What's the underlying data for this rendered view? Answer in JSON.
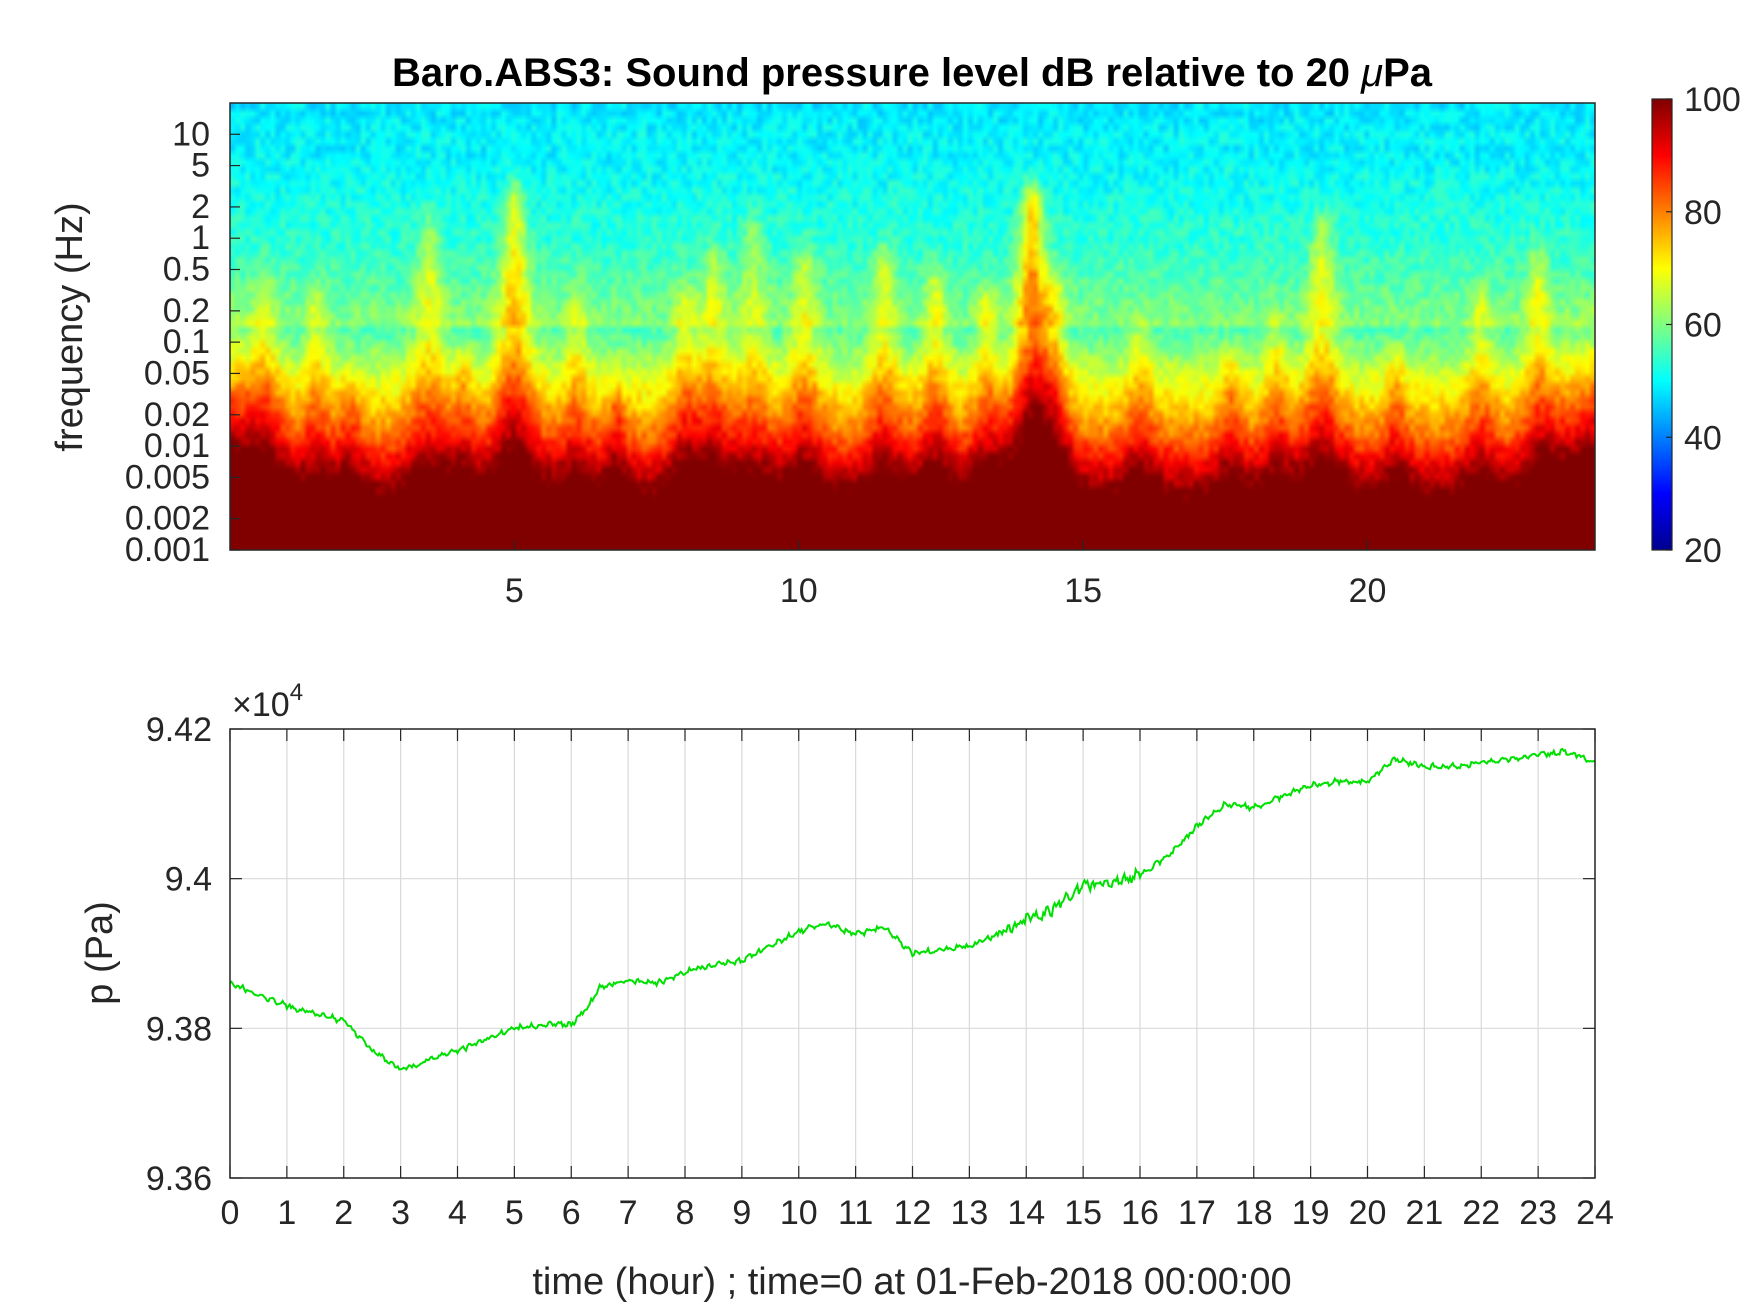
{
  "colors": {
    "axis": "#262626",
    "grid": "#d9d9d9",
    "pressure_line": "#00e000",
    "background": "#ffffff"
  },
  "chart_data": [
    {
      "type": "heatmap",
      "title": "Baro.ABS3: Sound pressure level dB relative to 20 μPa",
      "title_prefix": "Baro.ABS3: Sound pressure level dB relative to 20 ",
      "title_mu": "μ",
      "title_suffix": "Pa",
      "xlabel": "",
      "ylabel": "frequency (Hz)",
      "x_unit": "hour",
      "xlim": [
        0,
        24
      ],
      "ylim": [
        0.001,
        20
      ],
      "yscale": "log",
      "x_ticks": [
        5,
        10,
        15,
        20
      ],
      "x_tick_labels": [
        "5",
        "10",
        "15",
        "20"
      ],
      "y_ticks": [
        0.001,
        0.002,
        0.005,
        0.01,
        0.02,
        0.05,
        0.1,
        0.2,
        0.5,
        1,
        2,
        5,
        10
      ],
      "y_tick_labels": [
        "0.001",
        "0.002",
        "0.005",
        "0.01",
        "0.02",
        "0.05",
        "0.1",
        "0.2",
        "0.5",
        "1",
        "2",
        "5",
        "10"
      ],
      "colormap": "jet",
      "colorbar": {
        "range": [
          20,
          100
        ],
        "ticks": [
          20,
          40,
          60,
          80,
          100
        ],
        "tick_labels": [
          "20",
          "40",
          "60",
          "80",
          "100"
        ]
      },
      "bursts": [
        {
          "t": 0.6,
          "f_top": 0.3,
          "a": 8
        },
        {
          "t": 1.5,
          "f_top": 0.2,
          "a": 8
        },
        {
          "t": 2.1,
          "f_top": 0.03,
          "a": 8
        },
        {
          "t": 3.5,
          "f_top": 1.0,
          "a": 10
        },
        {
          "t": 4.1,
          "f_top": 0.05,
          "a": 8
        },
        {
          "t": 5.0,
          "f_top": 2.0,
          "a": 16
        },
        {
          "t": 6.1,
          "f_top": 0.2,
          "a": 8
        },
        {
          "t": 6.8,
          "f_top": 0.02,
          "a": 10
        },
        {
          "t": 8.0,
          "f_top": 0.2,
          "a": 10
        },
        {
          "t": 8.5,
          "f_top": 0.5,
          "a": 10
        },
        {
          "t": 9.2,
          "f_top": 1.0,
          "a": 8
        },
        {
          "t": 10.1,
          "f_top": 0.5,
          "a": 10
        },
        {
          "t": 11.5,
          "f_top": 0.5,
          "a": 10
        },
        {
          "t": 12.4,
          "f_top": 0.3,
          "a": 10
        },
        {
          "t": 13.3,
          "f_top": 0.2,
          "a": 10
        },
        {
          "t": 14.1,
          "f_top": 2.0,
          "a": 22
        },
        {
          "t": 14.5,
          "f_top": 0.3,
          "a": 10
        },
        {
          "t": 16.0,
          "f_top": 0.1,
          "a": 8
        },
        {
          "t": 17.6,
          "f_top": 0.05,
          "a": 8
        },
        {
          "t": 18.4,
          "f_top": 0.1,
          "a": 8
        },
        {
          "t": 19.2,
          "f_top": 1.0,
          "a": 12
        },
        {
          "t": 20.5,
          "f_top": 0.05,
          "a": 8
        },
        {
          "t": 22.0,
          "f_top": 0.2,
          "a": 8
        },
        {
          "t": 23.0,
          "f_top": 0.5,
          "a": 10
        }
      ]
    },
    {
      "type": "line",
      "title": "",
      "xlabel": "time (hour) ; time=0 at 01-Feb-2018 00:00:00",
      "ylabel": "p (Pa)",
      "xlim": [
        0,
        24
      ],
      "ylim": [
        93600,
        94200
      ],
      "exponent_label_base": "×10",
      "exponent_label_power": "4",
      "x_ticks": [
        0,
        1,
        2,
        3,
        4,
        5,
        6,
        7,
        8,
        9,
        10,
        11,
        12,
        13,
        14,
        15,
        16,
        17,
        18,
        19,
        20,
        21,
        22,
        23,
        24
      ],
      "x_tick_labels": [
        "0",
        "1",
        "2",
        "3",
        "4",
        "5",
        "6",
        "7",
        "8",
        "9",
        "10",
        "11",
        "12",
        "13",
        "14",
        "15",
        "16",
        "17",
        "18",
        "19",
        "20",
        "21",
        "22",
        "23",
        "24"
      ],
      "y_ticks": [
        93600,
        93800,
        94000,
        94200
      ],
      "y_tick_labels": [
        "9.36",
        "9.38",
        "9.4",
        "9.42"
      ],
      "grid": true,
      "series": [
        {
          "x": [
            0,
            0.5,
            1,
            1.5,
            2,
            2.5,
            3,
            3.3,
            3.5,
            4,
            4.5,
            5,
            5.5,
            6,
            6.3,
            6.5,
            7,
            7.5,
            8,
            8.5,
            9,
            9.5,
            10,
            10.5,
            11,
            11.5,
            12,
            12.5,
            13,
            13.5,
            14,
            14.5,
            15,
            15.5,
            16,
            16.5,
            17,
            17.5,
            18,
            18.5,
            19,
            19.5,
            20,
            20.5,
            21,
            21.5,
            22,
            22.5,
            23,
            23.5,
            24
          ],
          "y": [
            93860,
            93845,
            93830,
            93820,
            93810,
            93770,
            93745,
            93750,
            93760,
            93770,
            93785,
            93800,
            93805,
            93805,
            93830,
            93855,
            93865,
            93860,
            93875,
            93885,
            93890,
            93910,
            93930,
            93940,
            93925,
            93935,
            93900,
            93905,
            93910,
            93925,
            93945,
            93960,
            93990,
            93995,
            94005,
            94030,
            94070,
            94100,
            94095,
            94110,
            94125,
            94130,
            94130,
            94160,
            94150,
            94150,
            94155,
            94160,
            94165,
            94170,
            94155
          ]
        }
      ]
    }
  ]
}
